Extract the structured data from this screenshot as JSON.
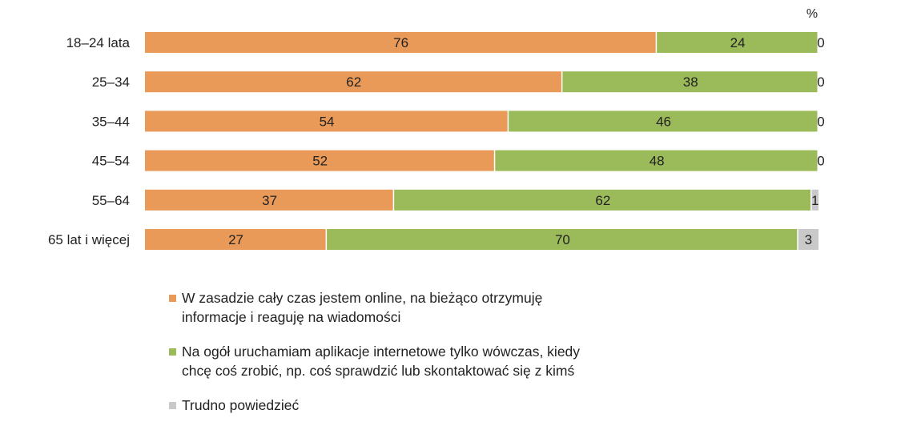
{
  "chart_data": {
    "type": "bar",
    "orientation": "horizontal",
    "stacked": true,
    "unit_label": "%",
    "categories": [
      "18–24 lata",
      "25–34",
      "35–44",
      "45–54",
      "55–64",
      "65 lat i więcej"
    ],
    "series": [
      {
        "name": "W zasadzie cały czas jestem online, na bieżąco otrzymuję\ninformacje i reaguję na wiadomości",
        "color": "#E99A58",
        "values": [
          76,
          62,
          54,
          52,
          37,
          27
        ]
      },
      {
        "name": "Na ogół uruchamiam aplikacje internetowe tylko wówczas, kiedy\nchcę coś zrobić,  np. coś sprawdzić lub skontaktować się z kimś",
        "color": "#9BBB5A",
        "values": [
          24,
          38,
          46,
          48,
          62,
          70
        ]
      },
      {
        "name": "Trudno powiedzieć",
        "color": "#C9C9C9",
        "values": [
          0,
          0,
          0,
          0,
          1,
          3
        ]
      }
    ],
    "xlim": [
      0,
      100
    ],
    "grid": false,
    "legend_position": "bottom"
  }
}
